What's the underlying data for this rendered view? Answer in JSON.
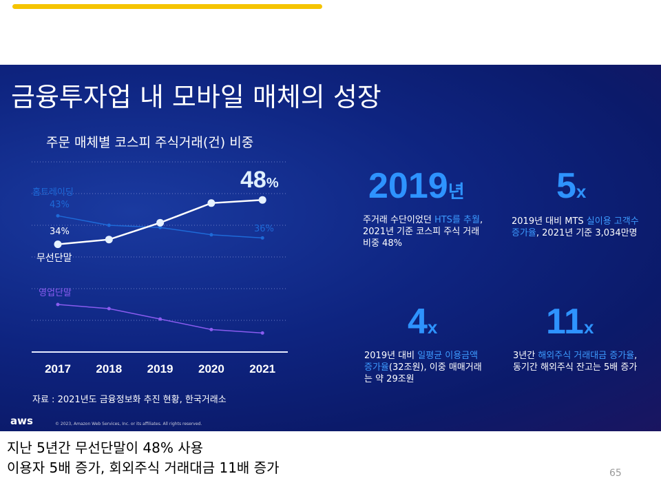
{
  "title": "금융투자업 내 모바일 매체의 성장",
  "chart_data": {
    "type": "line",
    "title": "주문 매체별 코스피 주식거래(건) 비중",
    "categories": [
      "2017",
      "2018",
      "2019",
      "2020",
      "2021"
    ],
    "ylim": [
      0,
      60
    ],
    "grid": true,
    "series": [
      {
        "name": "무선단말",
        "color": "#ffffff",
        "values": [
          34,
          35.5,
          40.8,
          47,
          48
        ]
      },
      {
        "name": "홈트레이딩",
        "color": "#1e6ad8",
        "values": [
          43,
          40,
          39.3,
          37,
          36
        ]
      },
      {
        "name": "영업단말",
        "color": "#8a5cf0",
        "values": [
          15,
          13.7,
          10.4,
          7.1,
          6
        ]
      }
    ],
    "data_labels": {
      "wireless_start": "34%",
      "wireless_end": "48",
      "wireless_end_unit": "%",
      "hts_start": "43%",
      "hts_end": "36%"
    }
  },
  "source": "자료 : 2021년도 금융정보화 추진 현황, 한국거래소",
  "stats": [
    {
      "big": "2019",
      "unit": "년",
      "pre": "주거래 수단이었던 ",
      "hl": "HTS를 추월",
      "post": ", 2021년 기준 코스피 주식 거래 비중 48%"
    },
    {
      "big": "5",
      "unit": "x",
      "pre": "2019년 대비 MTS ",
      "hl": "실이용 고객수 증가율",
      "post": ", 2021년 기준 3,034만명"
    },
    {
      "big": "4",
      "unit": "x",
      "pre": "2019년 대비 ",
      "hl": "일평균 이용금액 증가율",
      "post": "(32조원), 이중 매매거래는 약 29조원"
    },
    {
      "big": "11",
      "unit": "x",
      "pre": "3년간 ",
      "hl": "해외주식 거래대금 증가율",
      "post": ", 동기간 해외주식 잔고는 5배 증가"
    }
  ],
  "footer": {
    "logo": "aws",
    "copyright": "© 2023, Amazon Web Services, Inc. or its affiliates. All rights reserved."
  },
  "notes": {
    "line1": "지난 5년간 무선단말이 48% 사용",
    "line2": "이용자 5배 증가, 회외주식 거래대금 11배 증가"
  },
  "page_number": "65"
}
